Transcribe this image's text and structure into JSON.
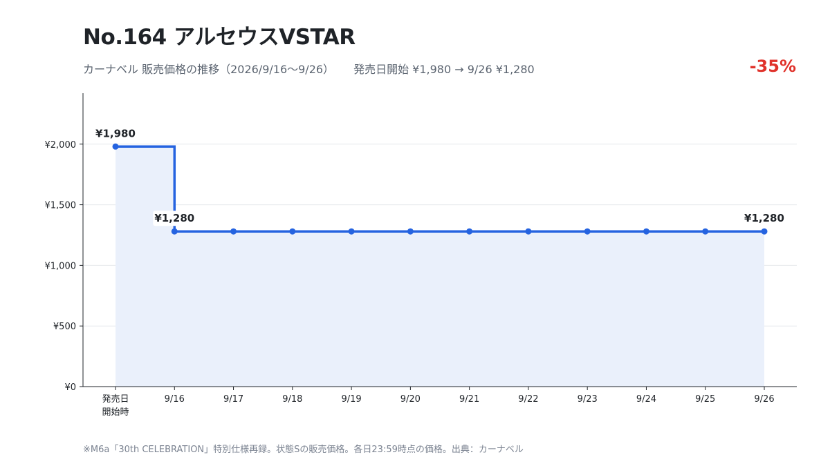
{
  "header": {
    "title": "No.164 アルセウスVSTAR",
    "subtitle_period": "カーナベル 販売価格の推移（2026/9/16〜9/26）",
    "subtitle_summary": "発売日開始 ¥1,980 → 9/26 ¥1,280",
    "change": "-35%"
  },
  "footnote": "※M6a「30th CELEBRATION」特別仕様再録。状態Sの販売価格。各日23:59時点の価格。出典：カーナベル",
  "colors": {
    "line": "#2563e0",
    "area": "#eaf0fb",
    "change": "#e0322b",
    "grid": "#e6e8ec",
    "axis": "#1f2328"
  },
  "chart_data": {
    "type": "line",
    "step": true,
    "categories": [
      "発売日\n開始時",
      "9/16",
      "9/17",
      "9/18",
      "9/19",
      "9/20",
      "9/21",
      "9/22",
      "9/23",
      "9/24",
      "9/25",
      "9/26"
    ],
    "series": [
      {
        "values": [
          1980,
          1280,
          1280,
          1280,
          1280,
          1280,
          1280,
          1280,
          1280,
          1280,
          1280,
          1280
        ]
      }
    ],
    "data_labels": [
      {
        "index": 0,
        "text": "¥1,980"
      },
      {
        "index": 1,
        "text": "¥1,280"
      },
      {
        "index": 11,
        "text": "¥1,280"
      }
    ],
    "y_ticks": [
      {
        "value": 0,
        "label": "¥0"
      },
      {
        "value": 500,
        "label": "¥500"
      },
      {
        "value": 1000,
        "label": "¥1,000"
      },
      {
        "value": 1500,
        "label": "¥1,500"
      },
      {
        "value": 2000,
        "label": "¥2,000"
      }
    ],
    "ylim": [
      0,
      2420
    ],
    "grid": true,
    "area_fill": true
  }
}
